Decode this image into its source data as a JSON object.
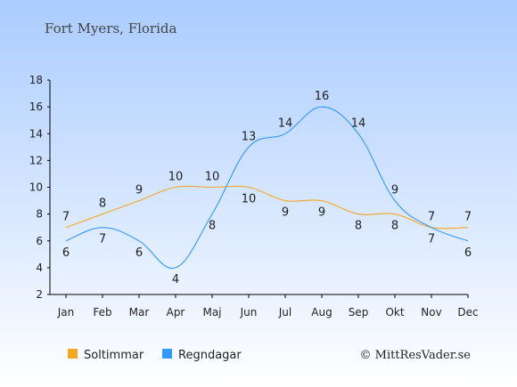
{
  "chart_data": {
    "type": "line",
    "title": "Fort Myers, Florida",
    "categories": [
      "Jan",
      "Feb",
      "Mar",
      "Apr",
      "Maj",
      "Jun",
      "Jul",
      "Aug",
      "Sep",
      "Okt",
      "Nov",
      "Dec"
    ],
    "series": [
      {
        "name": "Soltimmar",
        "color": "#f5a623",
        "values": [
          7,
          8,
          9,
          10,
          10,
          10,
          9,
          9,
          8,
          8,
          7,
          7
        ]
      },
      {
        "name": "Regndagar",
        "color": "#3399ff",
        "values": [
          6,
          7,
          6,
          4,
          8,
          13,
          14,
          16,
          14,
          9,
          7,
          6
        ]
      }
    ],
    "ylim": [
      2,
      18
    ],
    "yticks": [
      2,
      4,
      6,
      8,
      10,
      12,
      14,
      16,
      18
    ],
    "grid": false,
    "legend_position": "bottom-left",
    "credit": "© MittResVader.se"
  },
  "colors": {
    "background_top": "#aaccff",
    "background_bottom": "#ffffff"
  }
}
